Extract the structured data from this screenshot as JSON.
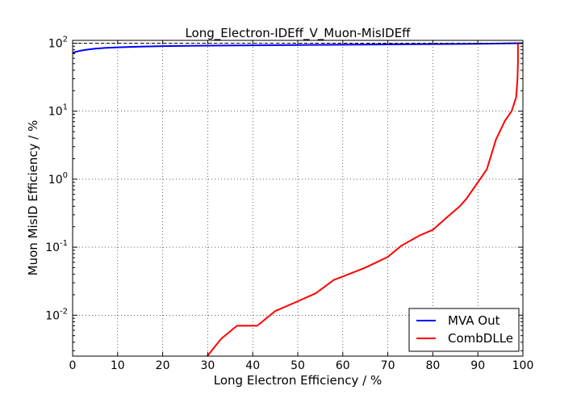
{
  "chart_data": {
    "type": "line",
    "title": "Long_Electron-IDEff_V_Muon-MisIDEff",
    "xlabel": "Long Electron Efficiency / %",
    "ylabel": "Muon MisID Efficiency / %",
    "xlim": [
      0,
      100
    ],
    "ylim": [
      0.0025,
      110
    ],
    "yscale": "log",
    "grid": true,
    "legend_position": "bottom-right",
    "x_ticks": [
      "0",
      "10",
      "20",
      "30",
      "40",
      "50",
      "60",
      "70",
      "80",
      "90",
      "100"
    ],
    "y_ticks": [
      {
        "value": 0.01,
        "base": "10",
        "exp": "-2"
      },
      {
        "value": 0.1,
        "base": "10",
        "exp": "-1"
      },
      {
        "value": 1,
        "base": "10",
        "exp": "0"
      },
      {
        "value": 10,
        "base": "10",
        "exp": "1"
      },
      {
        "value": 100,
        "base": "10",
        "exp": "2"
      }
    ],
    "series": [
      {
        "name": "MVA Out",
        "color": "#0000ff",
        "points": [
          [
            0,
            72
          ],
          [
            0.5,
            74
          ],
          [
            1.5,
            77
          ],
          [
            3,
            80
          ],
          [
            5,
            83
          ],
          [
            7,
            85
          ],
          [
            10,
            87
          ],
          [
            15,
            89
          ],
          [
            20,
            90.5
          ],
          [
            30,
            92
          ],
          [
            40,
            93
          ],
          [
            50,
            94
          ],
          [
            60,
            95
          ],
          [
            70,
            96
          ],
          [
            80,
            97
          ],
          [
            90,
            98
          ],
          [
            95,
            99
          ],
          [
            99,
            100
          ],
          [
            100,
            100
          ]
        ]
      },
      {
        "name": "CombDLLe",
        "color": "#ff0000",
        "points": [
          [
            29.9,
            0.0025
          ],
          [
            33,
            0.0045
          ],
          [
            36.5,
            0.007
          ],
          [
            41,
            0.007
          ],
          [
            45,
            0.0115
          ],
          [
            50,
            0.016
          ],
          [
            54,
            0.021
          ],
          [
            58,
            0.033
          ],
          [
            60,
            0.037
          ],
          [
            65,
            0.05
          ],
          [
            70,
            0.072
          ],
          [
            73,
            0.105
          ],
          [
            77,
            0.148
          ],
          [
            80,
            0.18
          ],
          [
            83,
            0.27
          ],
          [
            86,
            0.4
          ],
          [
            87.5,
            0.52
          ],
          [
            90,
            0.9
          ],
          [
            92,
            1.4
          ],
          [
            94,
            3.8
          ],
          [
            96,
            7.2
          ],
          [
            97.5,
            10
          ],
          [
            98.5,
            16
          ],
          [
            98.8,
            30
          ],
          [
            98.9,
            50
          ],
          [
            98.9,
            100
          ]
        ]
      }
    ]
  }
}
